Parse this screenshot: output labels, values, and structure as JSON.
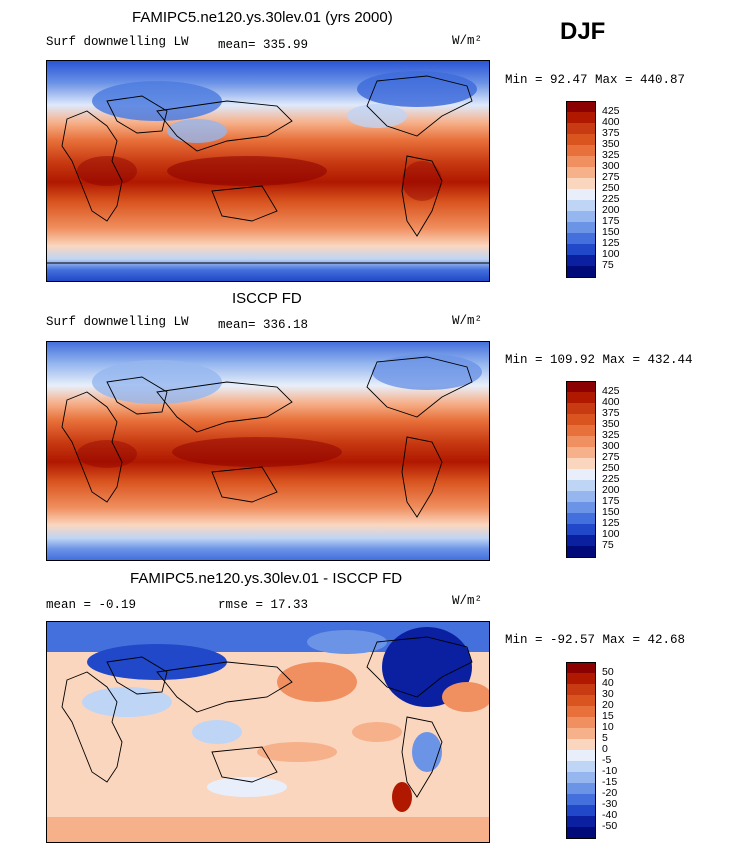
{
  "season": "DJF",
  "panels": [
    {
      "title": "FAMIPC5.ne120.ys.30lev.01 (yrs 2000)",
      "left_label": "Surf downwelling LW",
      "stat_label": "mean= 335.99",
      "units": "W/m²",
      "minmax": "Min =  92.47 Max = 440.87",
      "kind": "abs"
    },
    {
      "title": "ISCCP FD",
      "left_label": "Surf downwelling LW",
      "stat_label": "mean= 336.18",
      "units": "W/m²",
      "minmax": "Min = 109.92 Max = 432.44",
      "kind": "abs"
    },
    {
      "title": "FAMIPC5.ne120.ys.30lev.01 - ISCCP FD",
      "left_label": "mean =  -0.19",
      "stat_label": "rmse =  17.33",
      "units": "W/m²",
      "minmax": "Min = -92.57 Max =  42.68",
      "kind": "diff"
    }
  ],
  "colorbars": {
    "abs": {
      "labels": [
        "425",
        "400",
        "375",
        "350",
        "325",
        "300",
        "275",
        "250",
        "225",
        "200",
        "175",
        "150",
        "125",
        "100",
        "75"
      ],
      "colors": [
        "#8b0000",
        "#b01800",
        "#c83a12",
        "#d9541f",
        "#e8703a",
        "#f08f5f",
        "#f6b08a",
        "#fbd6bf",
        "#e8effa",
        "#bfd5f5",
        "#95b6ef",
        "#6b93e6",
        "#4370dc",
        "#2048c8",
        "#0a20a0",
        "#000a78"
      ]
    },
    "diff": {
      "labels": [
        "50",
        "40",
        "30",
        "20",
        "15",
        "10",
        "5",
        "0",
        "-5",
        "-10",
        "-15",
        "-20",
        "-30",
        "-40",
        "-50"
      ],
      "colors": [
        "#8b0000",
        "#b01800",
        "#c83a12",
        "#d9541f",
        "#e8703a",
        "#f08f5f",
        "#f6b08a",
        "#fbd6bf",
        "#e8effa",
        "#bfd5f5",
        "#95b6ef",
        "#6b93e6",
        "#4370dc",
        "#2048c8",
        "#0a20a0",
        "#000a78"
      ]
    }
  }
}
